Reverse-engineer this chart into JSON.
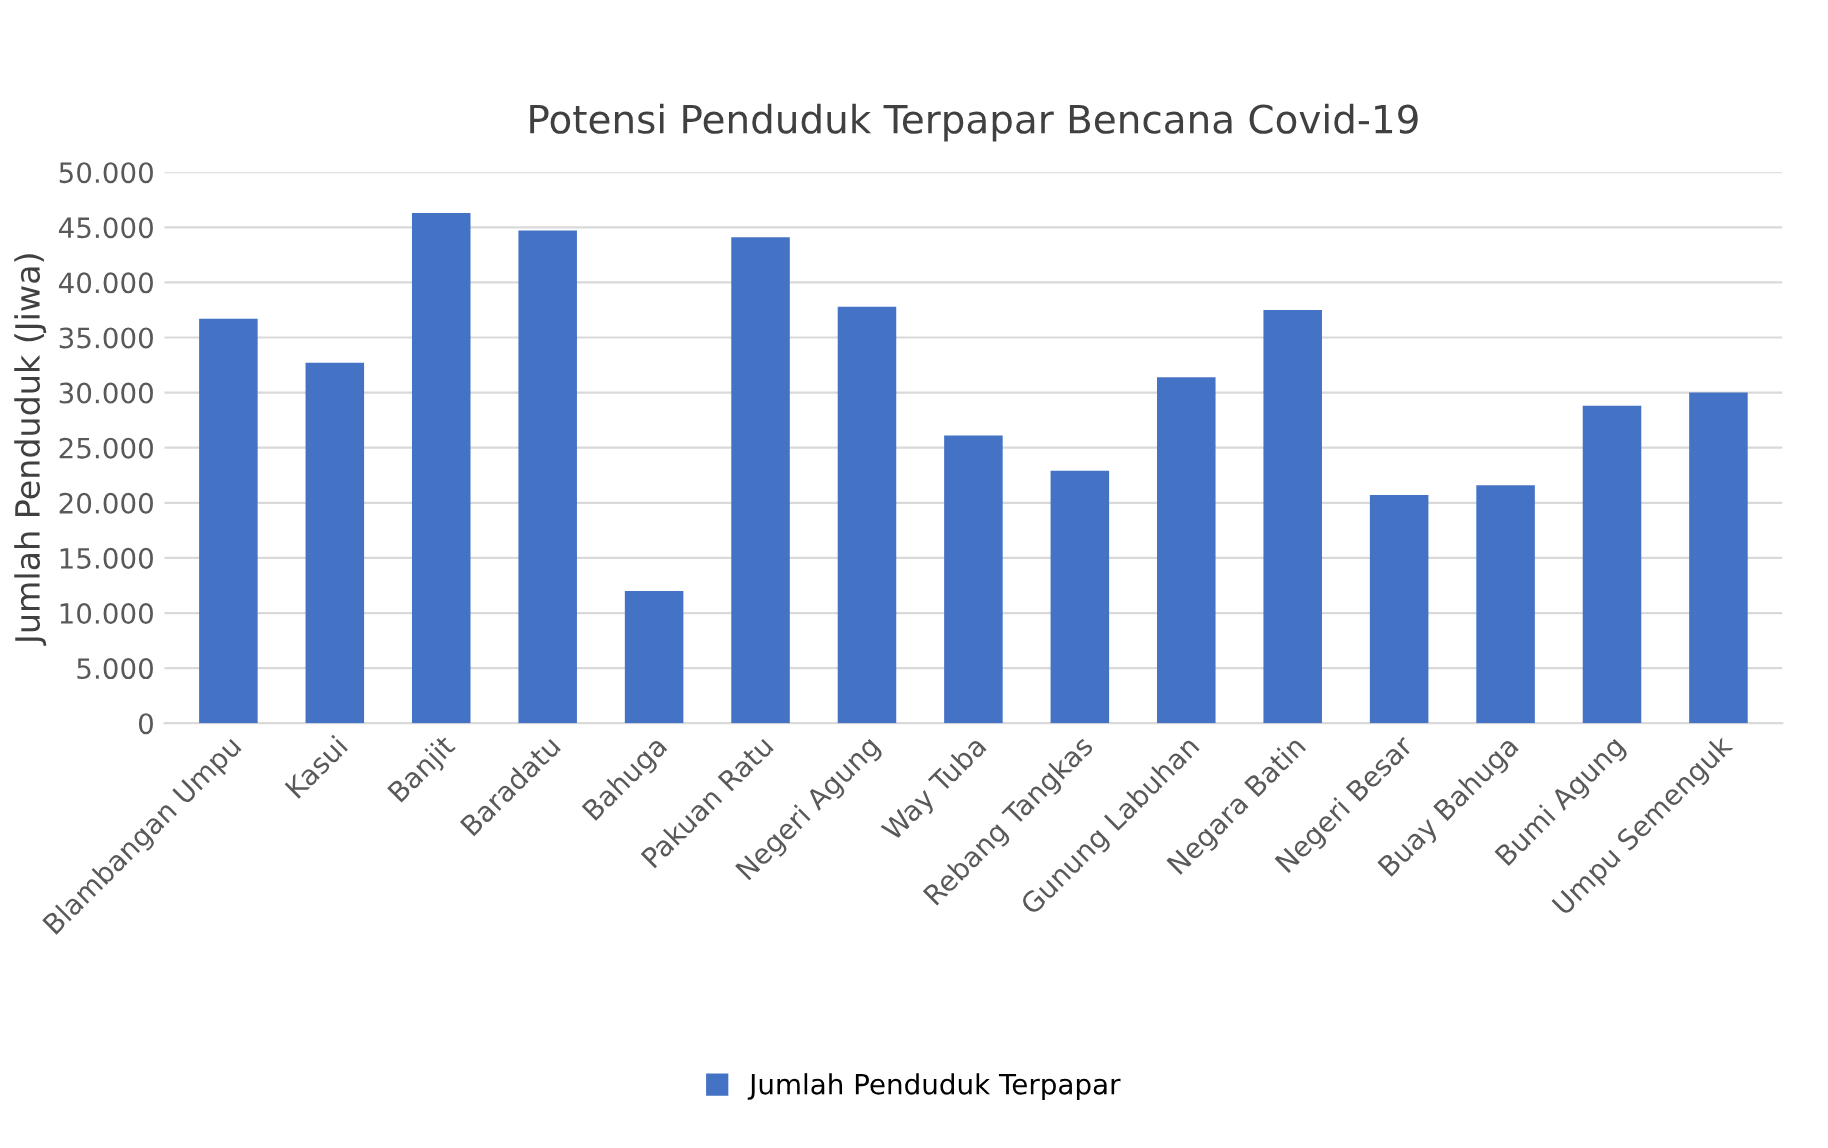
{
  "chart_data": {
    "type": "bar",
    "title": "Potensi Penduduk Terpapar Bencana Covid-19",
    "ylabel": "Jumlah Penduduk (Jiwa)",
    "categories": [
      "Blambangan Umpu",
      "Kasui",
      "Banjit",
      "Baradatu",
      "Bahuga",
      "Pakuan Ratu",
      "Negeri Agung",
      "Way Tuba",
      "Rebang Tangkas",
      "Gunung Labuhan",
      "Negara Batin",
      "Negeri Besar",
      "Buay Bahuga",
      "Bumi Agung",
      "Umpu Semenguk"
    ],
    "series": [
      {
        "name": "Jumlah Penduduk Terpapar",
        "color": "#4472c4",
        "values": [
          36700,
          32700,
          46300,
          44700,
          12000,
          44100,
          37800,
          26100,
          22900,
          31400,
          37500,
          20700,
          21600,
          28800,
          30000
        ]
      }
    ],
    "ylim": [
      0,
      50000
    ],
    "yticks": [
      {
        "value": 0,
        "label": "0"
      },
      {
        "value": 5000,
        "label": "5.000"
      },
      {
        "value": 10000,
        "label": "10.000"
      },
      {
        "value": 15000,
        "label": "15.000"
      },
      {
        "value": 20000,
        "label": "20.000"
      },
      {
        "value": 25000,
        "label": "25.000"
      },
      {
        "value": 30000,
        "label": "30.000"
      },
      {
        "value": 35000,
        "label": "35.000"
      },
      {
        "value": 40000,
        "label": "40.000"
      },
      {
        "value": 45000,
        "label": "45.000"
      },
      {
        "value": 50000,
        "label": "50.000"
      }
    ],
    "grid": "y",
    "legend": "bottom"
  }
}
